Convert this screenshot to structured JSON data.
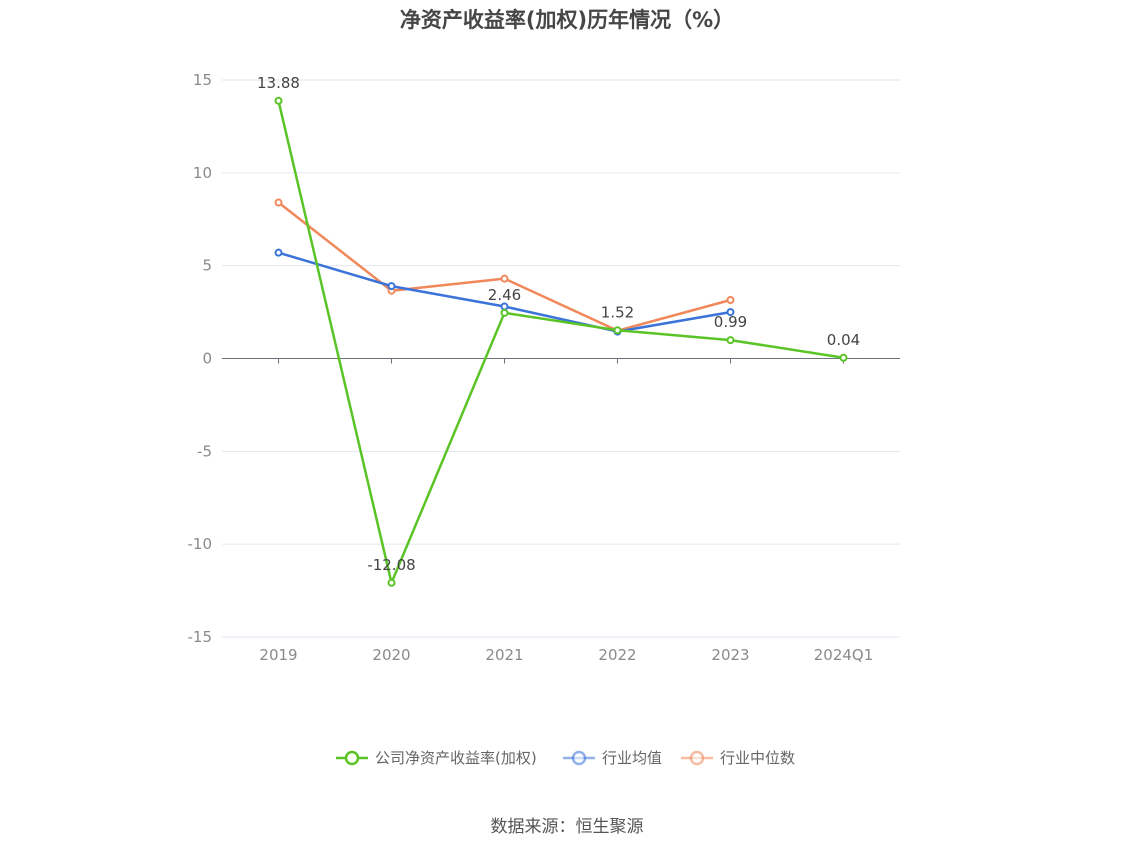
{
  "chart_data": {
    "type": "line",
    "title": "净资产收益率(加权)历年情况（%）",
    "categories": [
      "2019",
      "2020",
      "2021",
      "2022",
      "2023",
      "2024Q1"
    ],
    "ylim": [
      -15,
      15
    ],
    "yticks": [
      -15,
      -10,
      -5,
      0,
      5,
      10,
      15
    ],
    "grid": true,
    "legend_position": "bottom-center",
    "series": [
      {
        "name": "公司净资产收益率(加权)",
        "color": "#5ac426",
        "values": [
          13.88,
          -12.08,
          2.46,
          1.52,
          0.99,
          0.04
        ],
        "labels": [
          "13.88",
          "-12.08",
          "2.46",
          "1.52",
          "0.99",
          "0.04"
        ]
      },
      {
        "name": "行业均值",
        "color": "#3b73d9",
        "values": [
          5.7,
          3.9,
          2.8,
          1.45,
          2.5,
          null
        ]
      },
      {
        "name": "行业中位数",
        "color": "#f0885a",
        "values": [
          8.4,
          3.65,
          4.3,
          1.5,
          3.15,
          null
        ]
      }
    ]
  },
  "source_text": "数据来源：恒生聚源"
}
